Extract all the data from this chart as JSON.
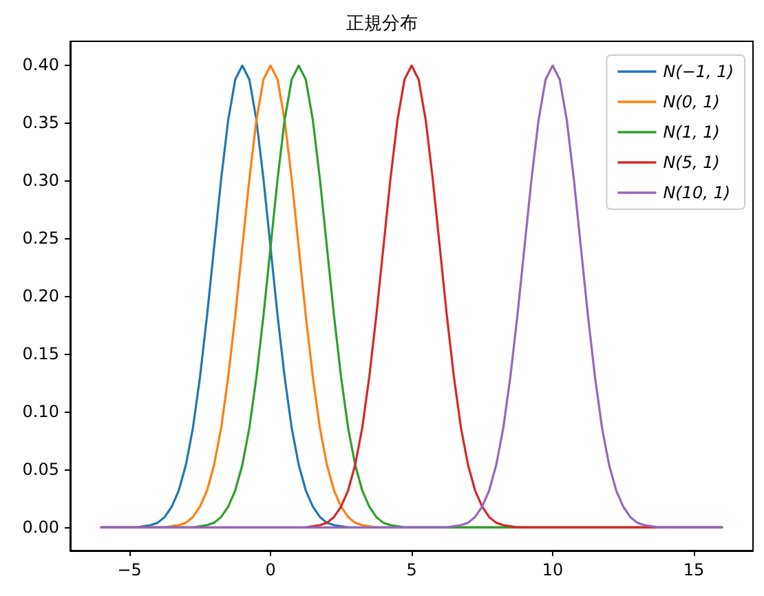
{
  "chart_data": {
    "type": "line",
    "title": "正規分布",
    "xlim": [
      -7.1,
      17.1
    ],
    "ylim": [
      -0.02,
      0.42
    ],
    "xticks": [
      {
        "value": -5,
        "label": "−5"
      },
      0,
      5,
      10,
      15
    ],
    "yticks": [
      {
        "value": 0,
        "label": "0.00"
      },
      {
        "value": 0.05,
        "label": "0.05"
      },
      {
        "value": 0.1,
        "label": "0.10"
      },
      {
        "value": 0.15,
        "label": "0.15"
      },
      {
        "value": 0.2,
        "label": "0.20"
      },
      {
        "value": 0.25,
        "label": "0.25"
      },
      {
        "value": 0.3,
        "label": "0.30"
      },
      {
        "value": 0.35,
        "label": "0.35"
      },
      {
        "value": 0.4,
        "label": "0.40"
      }
    ],
    "grid": false,
    "legend": "top right",
    "marker": "none",
    "line_style": "solid",
    "series": [
      {
        "name": "N(−1, 1)",
        "color": "#1f77b4",
        "x": [
          -6,
          -5,
          -4.75,
          -4.5,
          -4.25,
          -4,
          -3.75,
          -3.5,
          -3.25,
          -3,
          -2.75,
          -2.5,
          -2.25,
          -2,
          -1.75,
          -1.5,
          -1.25,
          -1,
          -0.75,
          -0.5,
          -0.25,
          0,
          0.25,
          0.5,
          0.75,
          1,
          1.25,
          1.5,
          1.75,
          2,
          2.25,
          2.5,
          2.75,
          3,
          16
        ],
        "values": [
          0,
          0,
          0,
          0.001,
          0.002,
          0.004,
          0.009,
          0.018,
          0.032,
          0.054,
          0.086,
          0.13,
          0.183,
          0.242,
          0.301,
          0.352,
          0.387,
          0.399,
          0.387,
          0.352,
          0.301,
          0.242,
          0.183,
          0.13,
          0.086,
          0.054,
          0.032,
          0.018,
          0.009,
          0.004,
          0.002,
          0.001,
          0,
          0,
          0
        ]
      },
      {
        "name": "N(0, 1)",
        "color": "#ff7f0e",
        "x": [
          -6,
          -4,
          -3.75,
          -3.5,
          -3.25,
          -3,
          -2.75,
          -2.5,
          -2.25,
          -2,
          -1.75,
          -1.5,
          -1.25,
          -1,
          -0.75,
          -0.5,
          -0.25,
          0,
          0.25,
          0.5,
          0.75,
          1,
          1.25,
          1.5,
          1.75,
          2,
          2.25,
          2.5,
          2.75,
          3,
          3.25,
          3.5,
          3.75,
          4,
          16
        ],
        "values": [
          0,
          0,
          0,
          0.001,
          0.002,
          0.004,
          0.009,
          0.018,
          0.032,
          0.054,
          0.086,
          0.13,
          0.183,
          0.242,
          0.301,
          0.352,
          0.387,
          0.399,
          0.387,
          0.352,
          0.301,
          0.242,
          0.183,
          0.13,
          0.086,
          0.054,
          0.032,
          0.018,
          0.009,
          0.004,
          0.002,
          0.001,
          0,
          0,
          0
        ]
      },
      {
        "name": "N(1, 1)",
        "color": "#2ca02c",
        "x": [
          -6,
          -3,
          -2.75,
          -2.5,
          -2.25,
          -2,
          -1.75,
          -1.5,
          -1.25,
          -1,
          -0.75,
          -0.5,
          -0.25,
          0,
          0.25,
          0.5,
          0.75,
          1,
          1.25,
          1.5,
          1.75,
          2,
          2.25,
          2.5,
          2.75,
          3,
          3.25,
          3.5,
          3.75,
          4,
          4.25,
          4.5,
          4.75,
          5,
          16
        ],
        "values": [
          0,
          0,
          0,
          0.001,
          0.002,
          0.004,
          0.009,
          0.018,
          0.032,
          0.054,
          0.086,
          0.13,
          0.183,
          0.242,
          0.301,
          0.352,
          0.387,
          0.399,
          0.387,
          0.352,
          0.301,
          0.242,
          0.183,
          0.13,
          0.086,
          0.054,
          0.032,
          0.018,
          0.009,
          0.004,
          0.002,
          0.001,
          0,
          0,
          0
        ]
      },
      {
        "name": "N(5, 1)",
        "color": "#d62728",
        "x": [
          -6,
          1,
          1.25,
          1.5,
          1.75,
          2,
          2.25,
          2.5,
          2.75,
          3,
          3.25,
          3.5,
          3.75,
          4,
          4.25,
          4.5,
          4.75,
          5,
          5.25,
          5.5,
          5.75,
          6,
          6.25,
          6.5,
          6.75,
          7,
          7.25,
          7.5,
          7.75,
          8,
          8.25,
          8.5,
          8.75,
          9,
          16
        ],
        "values": [
          0,
          0,
          0,
          0.001,
          0.002,
          0.004,
          0.009,
          0.018,
          0.032,
          0.054,
          0.086,
          0.13,
          0.183,
          0.242,
          0.301,
          0.352,
          0.387,
          0.399,
          0.387,
          0.352,
          0.301,
          0.242,
          0.183,
          0.13,
          0.086,
          0.054,
          0.032,
          0.018,
          0.009,
          0.004,
          0.002,
          0.001,
          0,
          0,
          0
        ]
      },
      {
        "name": "N(10, 1)",
        "color": "#9467bd",
        "x": [
          -6,
          6,
          6.25,
          6.5,
          6.75,
          7,
          7.25,
          7.5,
          7.75,
          8,
          8.25,
          8.5,
          8.75,
          9,
          9.25,
          9.5,
          9.75,
          10,
          10.25,
          10.5,
          10.75,
          11,
          11.25,
          11.5,
          11.75,
          12,
          12.25,
          12.5,
          12.75,
          13,
          13.25,
          13.5,
          13.75,
          14,
          16
        ],
        "values": [
          0,
          0,
          0,
          0.001,
          0.002,
          0.004,
          0.009,
          0.018,
          0.032,
          0.054,
          0.086,
          0.13,
          0.183,
          0.242,
          0.301,
          0.352,
          0.387,
          0.399,
          0.387,
          0.352,
          0.301,
          0.242,
          0.183,
          0.13,
          0.086,
          0.054,
          0.032,
          0.018,
          0.009,
          0.004,
          0.002,
          0.001,
          0,
          0,
          0
        ]
      }
    ]
  }
}
